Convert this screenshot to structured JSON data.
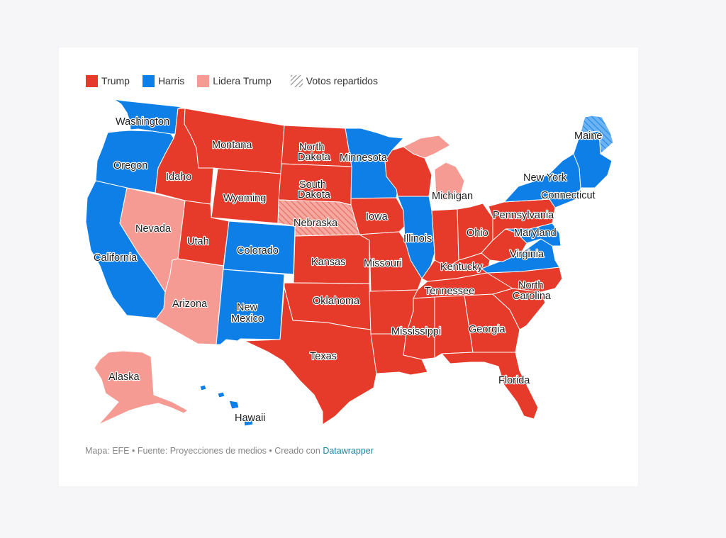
{
  "colors": {
    "trump": "#e63b2a",
    "harris": "#0e7fe6",
    "lidera_trump": "#f59b94",
    "split_bg": "#f4a8a0",
    "split_blue_bg": "#6db3f2",
    "background": "#f6f6f8",
    "card": "#ffffff"
  },
  "legend": [
    {
      "label": "Trump",
      "color": "#e63b2a",
      "pattern": false
    },
    {
      "label": "Harris",
      "color": "#0e7fe6",
      "pattern": false
    },
    {
      "label": "Lidera Trump",
      "color": "#f59b94",
      "pattern": false
    },
    {
      "label": "Votos repartidos",
      "color": "#999999",
      "pattern": true
    }
  ],
  "states": [
    {
      "name": "Washington",
      "result": "Harris"
    },
    {
      "name": "Oregon",
      "result": "Harris"
    },
    {
      "name": "California",
      "result": "Harris"
    },
    {
      "name": "Nevada",
      "result": "Lidera Trump"
    },
    {
      "name": "Idaho",
      "result": "Trump"
    },
    {
      "name": "Montana",
      "result": "Trump"
    },
    {
      "name": "Wyoming",
      "result": "Trump"
    },
    {
      "name": "Utah",
      "result": "Trump"
    },
    {
      "name": "Colorado",
      "result": "Harris"
    },
    {
      "name": "Arizona",
      "result": "Lidera Trump"
    },
    {
      "name": "New Mexico",
      "result": "Harris"
    },
    {
      "name": "North Dakota",
      "result": "Trump"
    },
    {
      "name": "South Dakota",
      "result": "Trump"
    },
    {
      "name": "Nebraska",
      "result": "Votos repartidos"
    },
    {
      "name": "Kansas",
      "result": "Trump"
    },
    {
      "name": "Oklahoma",
      "result": "Trump"
    },
    {
      "name": "Texas",
      "result": "Trump"
    },
    {
      "name": "Minnesota",
      "result": "Harris"
    },
    {
      "name": "Iowa",
      "result": "Trump"
    },
    {
      "name": "Missouri",
      "result": "Trump"
    },
    {
      "name": "Arkansas",
      "result": "Trump"
    },
    {
      "name": "Louisiana",
      "result": "Trump"
    },
    {
      "name": "Wisconsin",
      "result": "Trump"
    },
    {
      "name": "Illinois",
      "result": "Harris"
    },
    {
      "name": "Michigan",
      "result": "Lidera Trump"
    },
    {
      "name": "Indiana",
      "result": "Trump"
    },
    {
      "name": "Ohio",
      "result": "Trump"
    },
    {
      "name": "Kentucky",
      "result": "Trump"
    },
    {
      "name": "Tennessee",
      "result": "Trump"
    },
    {
      "name": "Mississippi",
      "result": "Trump"
    },
    {
      "name": "Alabama",
      "result": "Trump"
    },
    {
      "name": "Georgia",
      "result": "Trump"
    },
    {
      "name": "Florida",
      "result": "Trump"
    },
    {
      "name": "South Carolina",
      "result": "Trump"
    },
    {
      "name": "North Carolina",
      "result": "Trump"
    },
    {
      "name": "Virginia",
      "result": "Harris"
    },
    {
      "name": "West Virginia",
      "result": "Trump"
    },
    {
      "name": "Pennsylvania",
      "result": "Trump"
    },
    {
      "name": "New York",
      "result": "Harris"
    },
    {
      "name": "Maryland",
      "result": "Harris"
    },
    {
      "name": "Connecticut",
      "result": "Harris"
    },
    {
      "name": "Maine",
      "result": "Votos repartidos"
    },
    {
      "name": "Alaska",
      "result": "Lidera Trump"
    },
    {
      "name": "Hawaii",
      "result": "Harris"
    }
  ],
  "map_labels": {
    "washington": "Washington",
    "oregon": "Oregon",
    "california": "California",
    "nevada": "Nevada",
    "idaho": "Idaho",
    "montana": "Montana",
    "wyoming": "Wyoming",
    "utah": "Utah",
    "colorado": "Colorado",
    "arizona": "Arizona",
    "new_mexico_1": "New",
    "new_mexico_2": "Mexico",
    "north_dakota_1": "North",
    "north_dakota_2": "Dakota",
    "south_dakota_1": "South",
    "south_dakota_2": "Dakota",
    "nebraska": "Nebraska",
    "kansas": "Kansas",
    "oklahoma": "Oklahoma",
    "texas": "Texas",
    "minnesota": "Minnesota",
    "iowa": "Iowa",
    "missouri": "Missouri",
    "illinois": "Illinois",
    "michigan": "Michigan",
    "ohio": "Ohio",
    "kentucky": "Kentucky",
    "tennessee": "Tennessee",
    "mississippi": "Mississippi",
    "georgia": "Georgia",
    "florida": "Florida",
    "north_carolina_1": "North",
    "north_carolina_2": "Carolina",
    "virginia": "Virginia",
    "pennsylvania": "Pennsylvania",
    "new_york": "New York",
    "maryland": "Maryland",
    "connecticut": "Connecticut",
    "maine": "Maine",
    "alaska": "Alaska",
    "hawaii": "Hawaii"
  },
  "footer": {
    "text": "Mapa: EFE • Fuente: Proyecciones de medios • Creado con ",
    "link": "Datawrapper"
  }
}
